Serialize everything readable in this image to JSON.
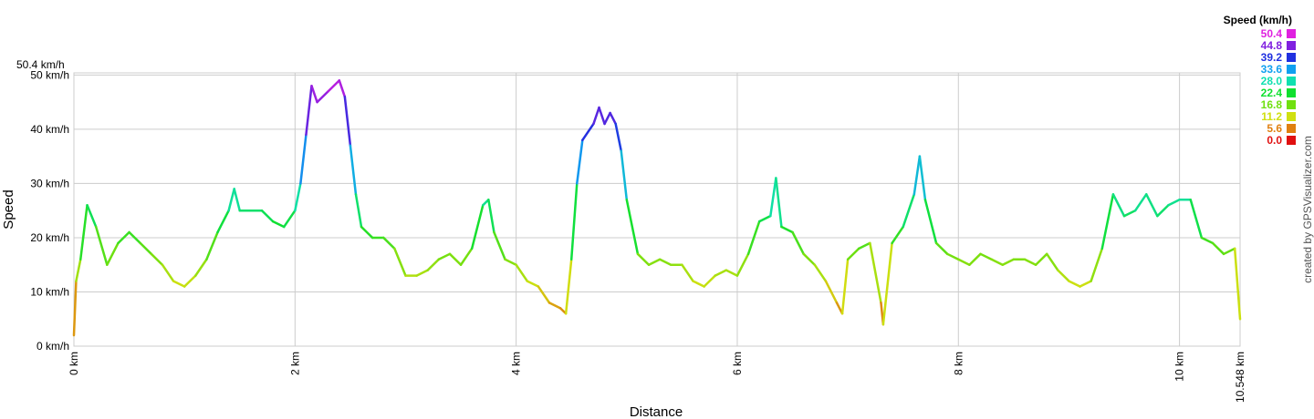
{
  "chart_data": {
    "type": "line",
    "xlabel": "Distance",
    "ylabel": "Speed",
    "x_unit": "km",
    "xlim": [
      0,
      10.548
    ],
    "ylim": [
      0,
      50.4
    ],
    "ylim_label": "50.4 km/h",
    "x_ticks": [
      {
        "value": 0,
        "label": "0 km"
      },
      {
        "value": 2,
        "label": "2 km"
      },
      {
        "value": 4,
        "label": "4 km"
      },
      {
        "value": 6,
        "label": "6 km"
      },
      {
        "value": 8,
        "label": "8 km"
      },
      {
        "value": 10,
        "label": "10 km"
      },
      {
        "value": 10.548,
        "label": "10.548 km"
      }
    ],
    "y_ticks": [
      {
        "value": 0,
        "label": "0 km/h"
      },
      {
        "value": 10,
        "label": "10 km/h"
      },
      {
        "value": 20,
        "label": "20 km/h"
      },
      {
        "value": 30,
        "label": "30 km/h"
      },
      {
        "value": 40,
        "label": "40 km/h"
      },
      {
        "value": 50,
        "label": "50 km/h"
      }
    ],
    "grid": true,
    "legend": {
      "title": "Speed (km/h)",
      "placement": "top-right",
      "entries": [
        {
          "label": "50.4",
          "color": "#e020e0"
        },
        {
          "label": "44.8",
          "color": "#8020e0"
        },
        {
          "label": "39.2",
          "color": "#2030e0"
        },
        {
          "label": "33.6",
          "color": "#10a0f0"
        },
        {
          "label": "28.0",
          "color": "#10e0b0"
        },
        {
          "label": "22.4",
          "color": "#10e030"
        },
        {
          "label": "16.8",
          "color": "#70e010"
        },
        {
          "label": "11.2",
          "color": "#d0e010"
        },
        {
          "label": "5.6",
          "color": "#e08010"
        },
        {
          "label": "0.0",
          "color": "#e01010"
        }
      ]
    },
    "series": [
      {
        "x": [
          0,
          0.02,
          0.06,
          0.12,
          0.2,
          0.3,
          0.4,
          0.5,
          0.6,
          0.7,
          0.8,
          0.9,
          1.0,
          1.1,
          1.2,
          1.3,
          1.4,
          1.45,
          1.5,
          1.6,
          1.7,
          1.8,
          1.9,
          2.0,
          2.05,
          2.1,
          2.15,
          2.2,
          2.3,
          2.4,
          2.45,
          2.5,
          2.55,
          2.6,
          2.7,
          2.8,
          2.9,
          3.0,
          3.1,
          3.2,
          3.3,
          3.4,
          3.5,
          3.6,
          3.7,
          3.75,
          3.8,
          3.9,
          4.0,
          4.1,
          4.2,
          4.3,
          4.4,
          4.45,
          4.5,
          4.55,
          4.6,
          4.7,
          4.75,
          4.8,
          4.85,
          4.9,
          4.95,
          5.0,
          5.1,
          5.2,
          5.3,
          5.4,
          5.5,
          5.6,
          5.7,
          5.8,
          5.9,
          6.0,
          6.1,
          6.2,
          6.3,
          6.35,
          6.4,
          6.5,
          6.6,
          6.7,
          6.8,
          6.9,
          6.95,
          7.0,
          7.1,
          7.2,
          7.3,
          7.32,
          7.4,
          7.5,
          7.6,
          7.65,
          7.7,
          7.8,
          7.9,
          8.0,
          8.1,
          8.2,
          8.3,
          8.4,
          8.5,
          8.6,
          8.7,
          8.8,
          8.9,
          9.0,
          9.1,
          9.2,
          9.3,
          9.4,
          9.5,
          9.6,
          9.7,
          9.8,
          9.9,
          10.0,
          10.1,
          10.2,
          10.3,
          10.4,
          10.5,
          10.548
        ],
        "y": [
          2,
          12,
          16,
          26,
          22,
          15,
          19,
          21,
          19,
          17,
          15,
          12,
          11,
          13,
          16,
          21,
          25,
          29,
          25,
          25,
          25,
          23,
          22,
          25,
          30,
          39,
          48,
          45,
          47,
          49,
          46,
          37,
          28,
          22,
          20,
          20,
          18,
          13,
          13,
          14,
          16,
          17,
          15,
          18,
          26,
          27,
          21,
          16,
          15,
          12,
          11,
          8,
          7,
          6,
          16,
          30,
          38,
          41,
          44,
          41,
          43,
          41,
          36,
          27,
          17,
          15,
          16,
          15,
          15,
          12,
          11,
          13,
          14,
          13,
          17,
          23,
          24,
          31,
          22,
          21,
          17,
          15,
          12,
          8,
          6,
          16,
          18,
          19,
          8,
          4,
          19,
          22,
          28,
          35,
          27,
          19,
          17,
          16,
          15,
          17,
          16,
          15,
          16,
          16,
          15,
          17,
          14,
          12,
          11,
          12,
          18,
          28,
          24,
          25,
          28,
          24,
          26,
          27,
          27,
          20,
          19,
          17,
          18,
          5
        ]
      }
    ],
    "credit": "created by GPSVisualizer.com"
  }
}
